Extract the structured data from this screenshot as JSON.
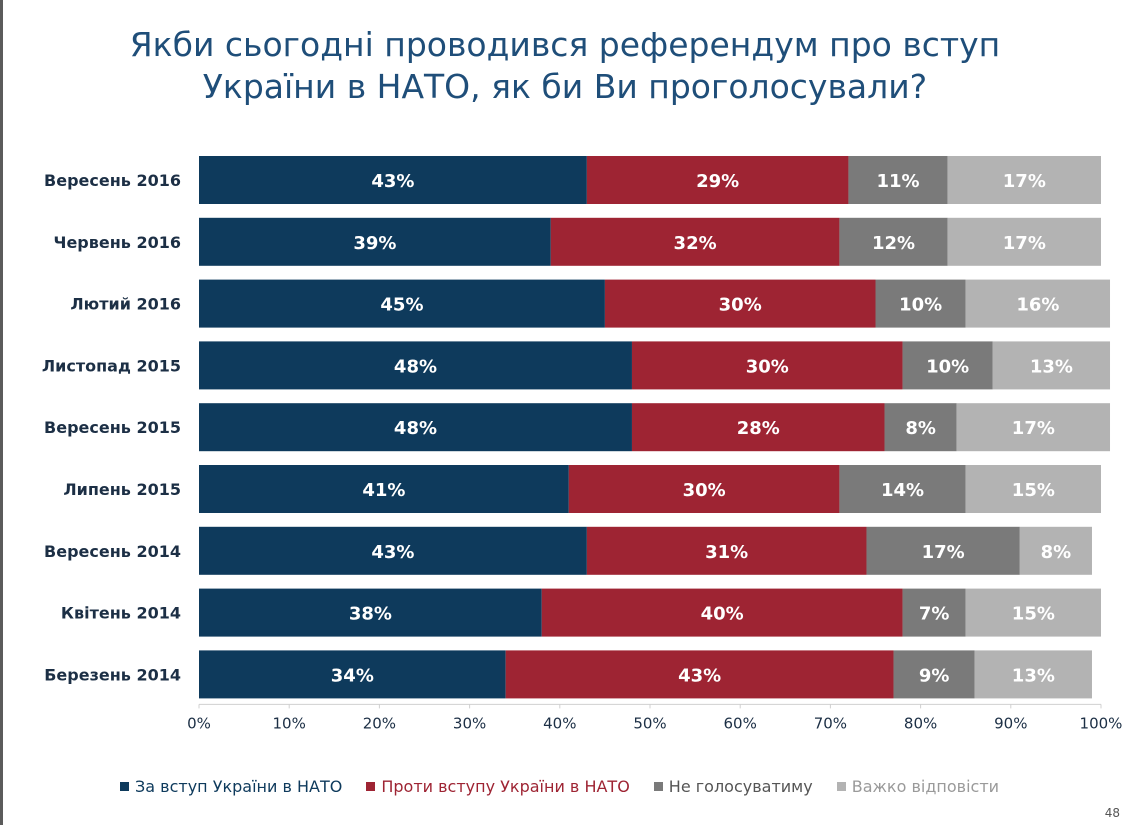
{
  "title": "Якби сьогодні проводився референдум про вступ України в НАТО, як би Ви проголосували?",
  "page_number": "48",
  "colors": {
    "for": "#0e3a5c",
    "against": "#9e2433",
    "not_vote": "#7a7a7a",
    "hard_to_say": "#b3b3b3",
    "title": "#1f4e79"
  },
  "chart_data": {
    "type": "bar",
    "orientation": "horizontal",
    "stacked": "percent",
    "title": "Якби сьогодні проводився референдум про вступ України в НАТО, як би Ви проголосували?",
    "categories": [
      "Вересень 2016",
      "Червень 2016",
      "Лютий 2016",
      "Листопад 2015",
      "Вересень 2015",
      "Липень 2015",
      "Вересень 2014",
      "Квітень 2014",
      "Березень 2014"
    ],
    "series": [
      {
        "name": "За вступ України в НАТО",
        "color": "#0e3a5c",
        "text_color": "#ffffff",
        "values": [
          43,
          39,
          45,
          48,
          48,
          41,
          43,
          38,
          34
        ]
      },
      {
        "name": "Проти вступу України в НАТО",
        "color": "#9e2433",
        "text_color": "#ffffff",
        "values": [
          29,
          32,
          30,
          30,
          28,
          30,
          31,
          40,
          43
        ]
      },
      {
        "name": "Не голосуватиму",
        "color": "#7a7a7a",
        "text_color": "#ffffff",
        "values": [
          11,
          12,
          10,
          10,
          8,
          14,
          17,
          7,
          9
        ]
      },
      {
        "name": "Важко відповісти",
        "color": "#b3b3b3",
        "text_color": "#ffffff",
        "values": [
          17,
          17,
          16,
          13,
          17,
          15,
          8,
          15,
          13
        ]
      }
    ],
    "xlim": [
      0,
      100
    ],
    "x_ticks": [
      "0%",
      "10%",
      "20%",
      "30%",
      "40%",
      "50%",
      "60%",
      "70%",
      "80%",
      "90%",
      "100%"
    ],
    "legend_position": "bottom",
    "grid": false
  },
  "legend": [
    {
      "label": "За вступ України в НАТО",
      "color": "#0e3a5c",
      "text_color": "#0e3a5c"
    },
    {
      "label": "Проти вступу України в НАТО",
      "color": "#9e2433",
      "text_color": "#9e2433"
    },
    {
      "label": "Не голосуватиму",
      "color": "#7a7a7a",
      "text_color": "#555555"
    },
    {
      "label": "Важко відповісти",
      "color": "#b3b3b3",
      "text_color": "#9a9a9a"
    }
  ]
}
